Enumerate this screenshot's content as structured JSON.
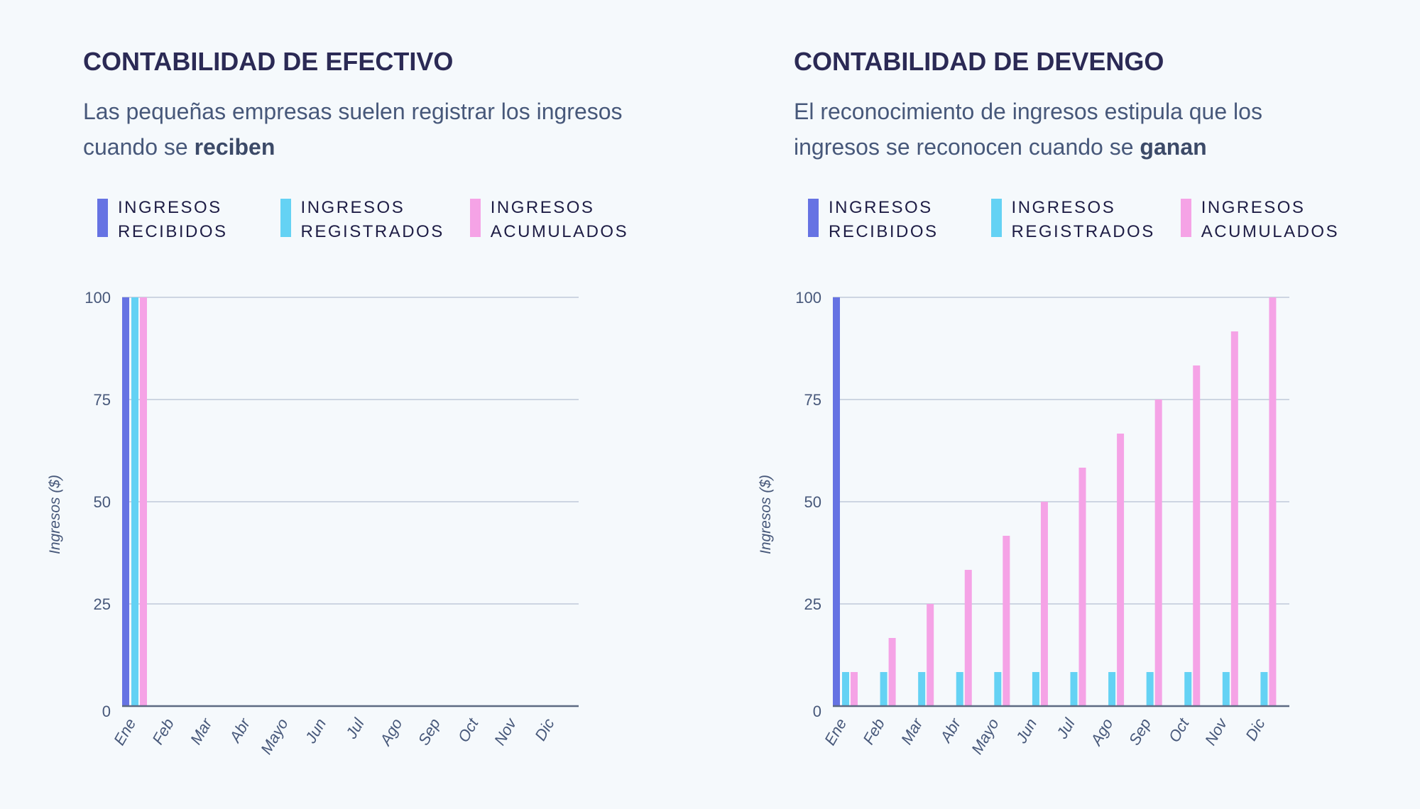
{
  "colors": {
    "received": "#6673e3",
    "registered": "#64d2f4",
    "accrued": "#f5a3e6",
    "grid": "#cdd5e2",
    "axis": "#5d6a82",
    "text": "#47587a"
  },
  "legend": [
    {
      "line1": "INGRESOS",
      "line2": "RECIBIDOS",
      "color": "#6673e3"
    },
    {
      "line1": "INGRESOS",
      "line2": "REGISTRADOS",
      "color": "#64d2f4"
    },
    {
      "line1": "INGRESOS",
      "line2": "ACUMULADOS",
      "color": "#f5a3e6"
    }
  ],
  "chart_data": [
    {
      "type": "bar",
      "title": "CONTABILIDAD DE EFECTIVO",
      "subtitle_pre": "Las pequeñas empresas suelen registrar los ingresos cuando se ",
      "subtitle_bold": "reciben",
      "ylabel": "Ingresos ($)",
      "ylim": [
        0,
        100
      ],
      "yticks": [
        0,
        25,
        50,
        75,
        100
      ],
      "grid": true,
      "legend_position": "top",
      "categories": [
        "Ene",
        "Feb",
        "Mar",
        "Abr",
        "Mayo",
        "Jun",
        "Jul",
        "Ago",
        "Sep",
        "Oct",
        "Nov",
        "Dic"
      ],
      "series": [
        {
          "name": "INGRESOS RECIBIDOS",
          "values": [
            100,
            0,
            0,
            0,
            0,
            0,
            0,
            0,
            0,
            0,
            0,
            0
          ]
        },
        {
          "name": "INGRESOS REGISTRADOS",
          "values": [
            100,
            0,
            0,
            0,
            0,
            0,
            0,
            0,
            0,
            0,
            0,
            0
          ]
        },
        {
          "name": "INGRESOS ACUMULADOS",
          "values": [
            100,
            0,
            0,
            0,
            0,
            0,
            0,
            0,
            0,
            0,
            0,
            0
          ]
        }
      ]
    },
    {
      "type": "bar",
      "title": "CONTABILIDAD DE DEVENGO",
      "subtitle_pre": "El reconocimiento de ingresos estipula que los ingresos se reconocen cuando se ",
      "subtitle_bold": "ganan",
      "ylabel": "Ingresos ($)",
      "ylim": [
        0,
        100
      ],
      "yticks": [
        0,
        25,
        50,
        75,
        100
      ],
      "grid": true,
      "legend_position": "top",
      "categories": [
        "Ene",
        "Feb",
        "Mar",
        "Abr",
        "Mayo",
        "Jun",
        "Jul",
        "Ago",
        "Sep",
        "Oct",
        "Nov",
        "Dic"
      ],
      "series": [
        {
          "name": "INGRESOS RECIBIDOS",
          "values": [
            100,
            0,
            0,
            0,
            0,
            0,
            0,
            0,
            0,
            0,
            0,
            0
          ]
        },
        {
          "name": "INGRESOS REGISTRADOS",
          "values": [
            8.33,
            8.33,
            8.33,
            8.33,
            8.33,
            8.33,
            8.33,
            8.33,
            8.33,
            8.33,
            8.33,
            8.33
          ]
        },
        {
          "name": "INGRESOS ACUMULADOS",
          "values": [
            8.33,
            16.67,
            25,
            33.33,
            41.67,
            50,
            58.33,
            66.67,
            75,
            83.33,
            91.67,
            100
          ]
        }
      ]
    }
  ]
}
